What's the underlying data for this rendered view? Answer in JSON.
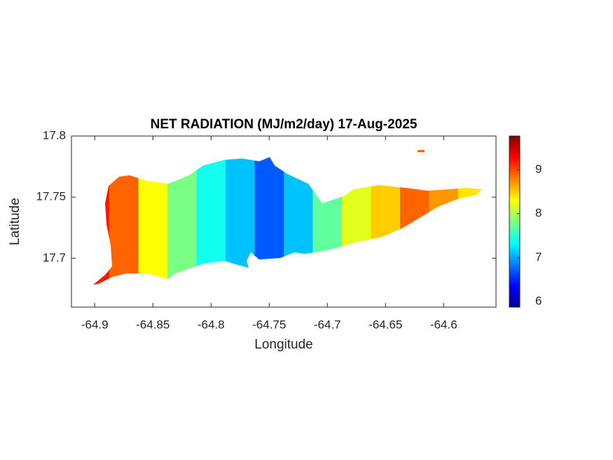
{
  "chart_data": {
    "type": "map",
    "title": "NET RADIATION (MJ/m2/day) 17-Aug-2025",
    "x_label": "Longitude",
    "y_label": "Latitude",
    "xlim": [
      -64.92,
      -64.555
    ],
    "ylim": [
      17.66,
      17.8
    ],
    "xticks": [
      -64.9,
      -64.85,
      -64.8,
      -64.75,
      -64.7,
      -64.65,
      -64.6
    ],
    "yticks": [
      17.7,
      17.75,
      17.8
    ],
    "x": [
      -64.9,
      -64.875,
      -64.85,
      -64.825,
      -64.8,
      -64.775,
      -64.75,
      -64.725,
      -64.7,
      -64.675,
      -64.65,
      -64.625,
      -64.6,
      -64.575
    ],
    "values": [
      9.2,
      8.9,
      8.3,
      7.8,
      7.4,
      7.1,
      6.7,
      7.1,
      7.7,
      8.2,
      8.5,
      8.9,
      8.7,
      8.4
    ],
    "colormap": "jet",
    "clim": [
      5.87,
      9.77
    ],
    "cticks": [
      6,
      7,
      8,
      9
    ]
  }
}
